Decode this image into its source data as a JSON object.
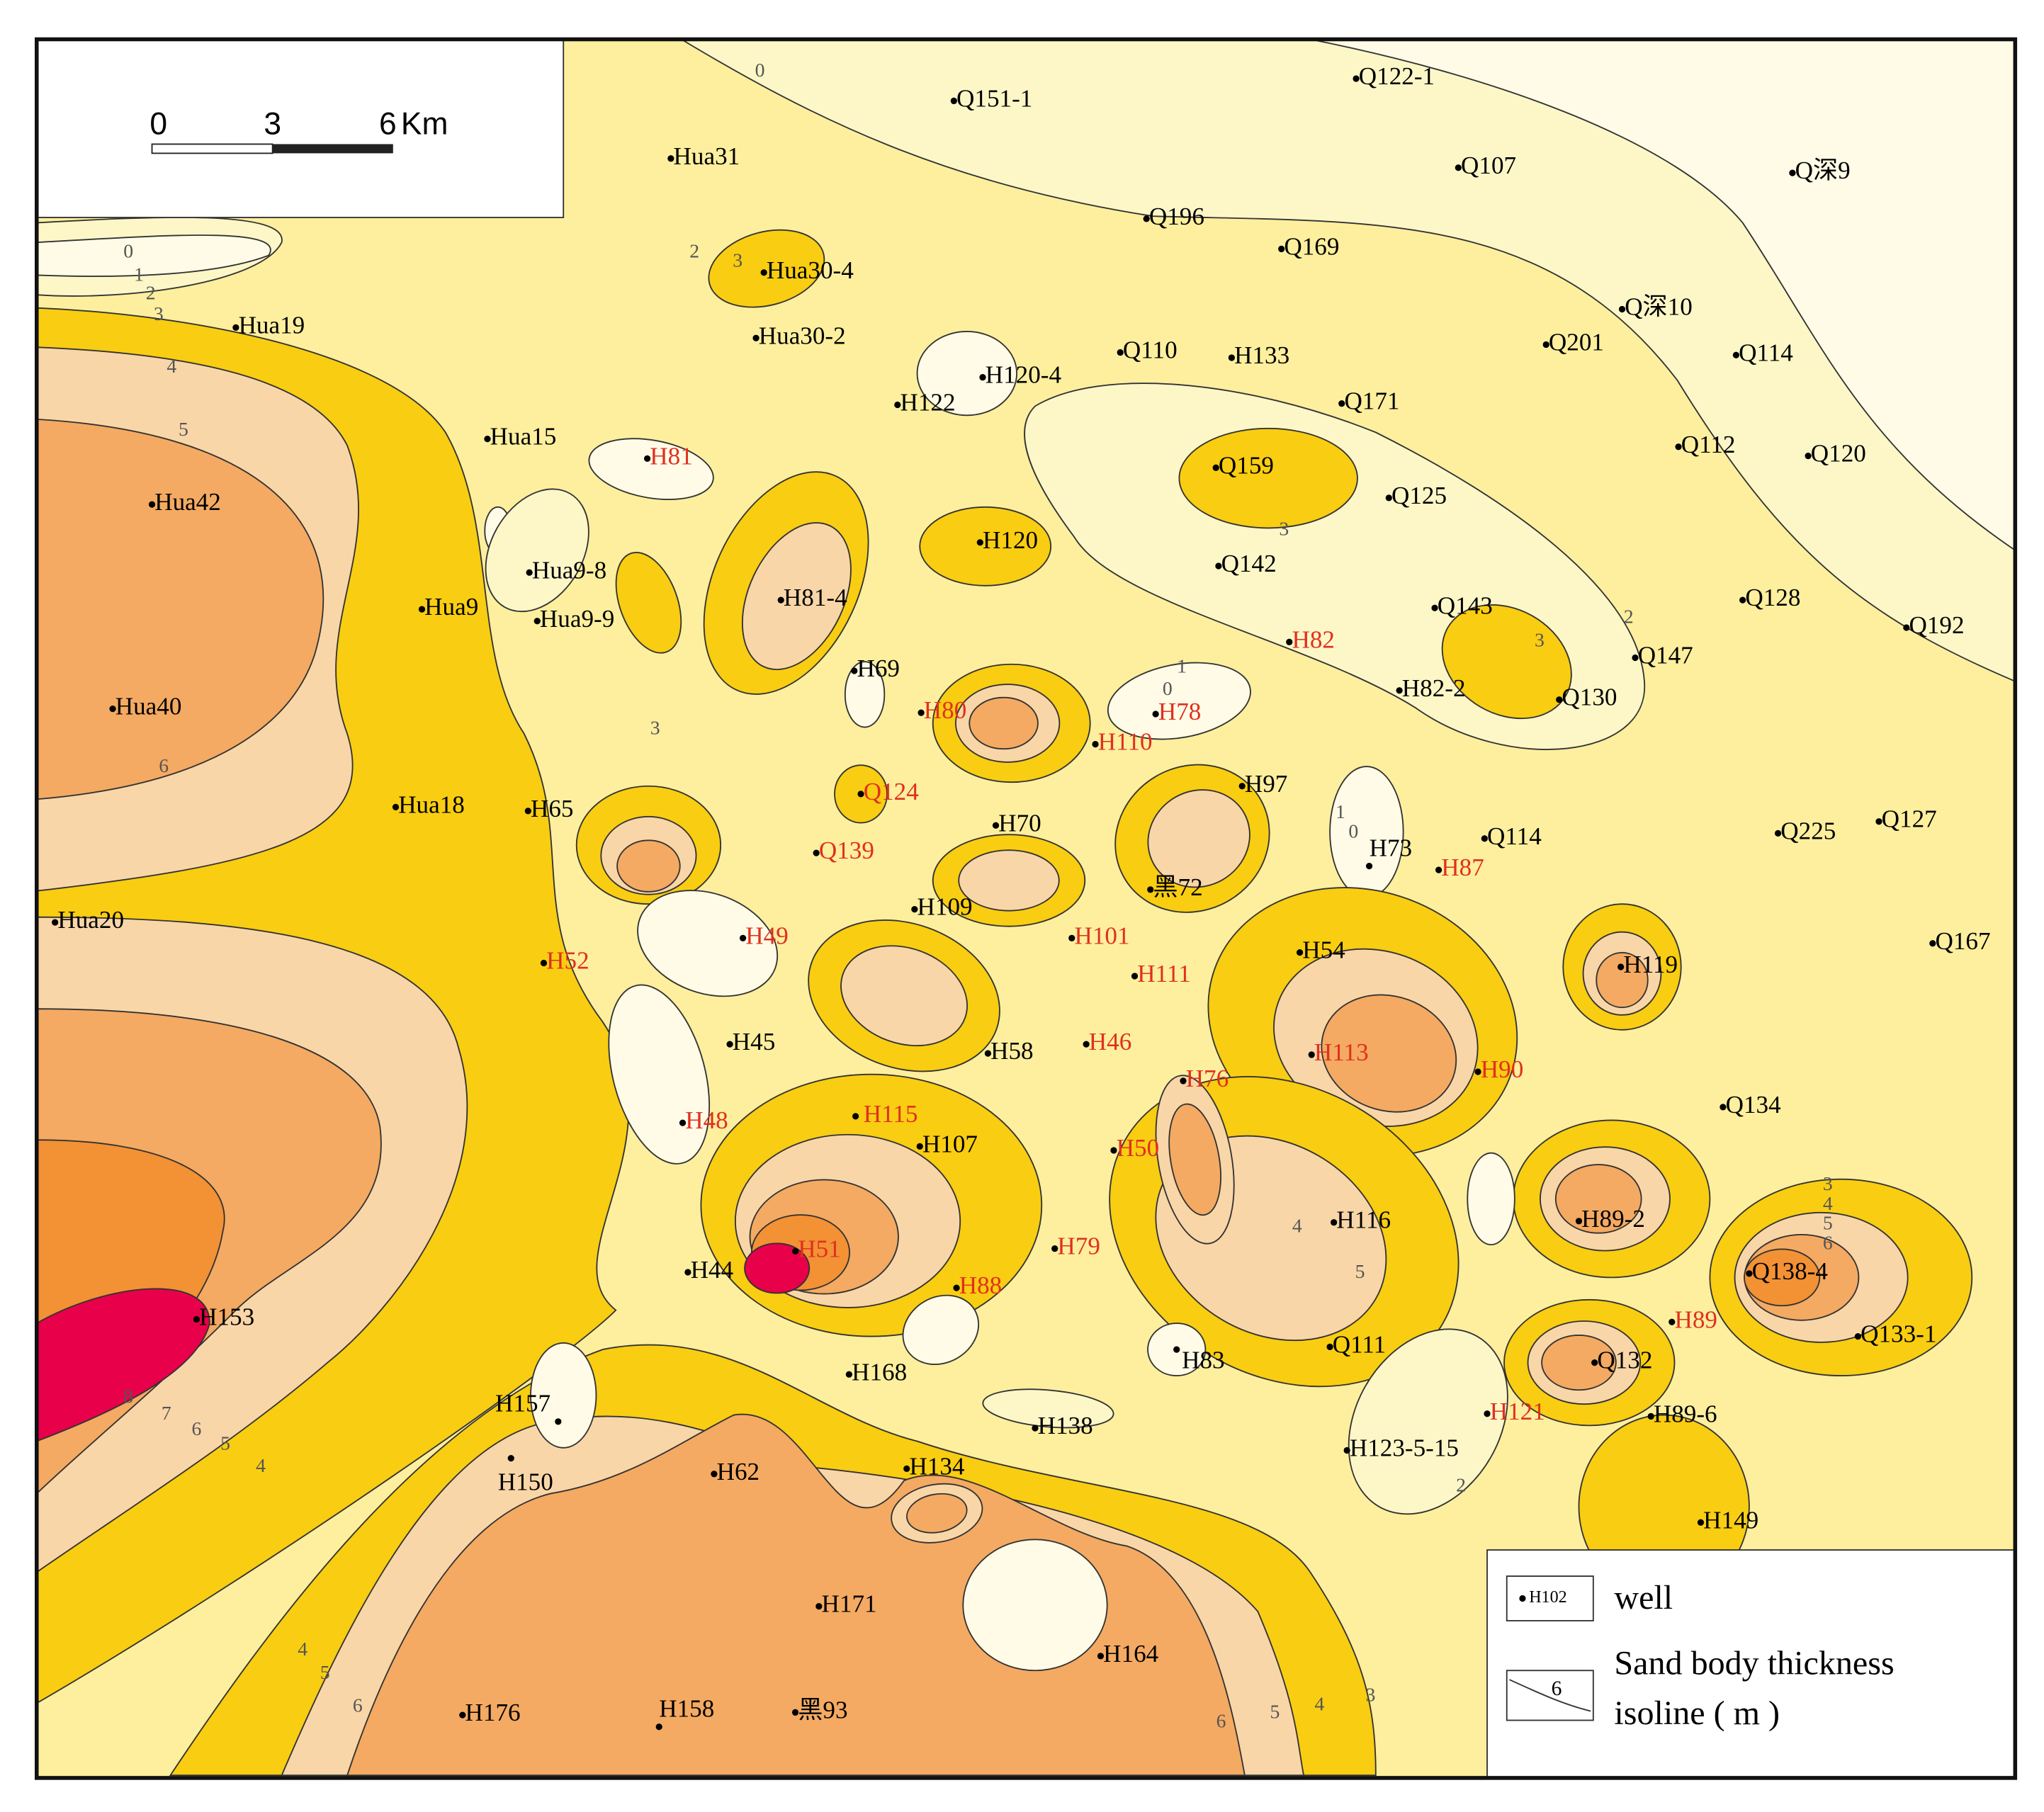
{
  "scale_bar": {
    "ticks": [
      0,
      3,
      6
    ],
    "unit": "Km"
  },
  "wells": [
    {
      "name": "Q151-1",
      "color": "#000"
    },
    {
      "name": "Q122-1",
      "color": "#000"
    },
    {
      "name": "Hua31",
      "color": "#000"
    },
    {
      "name": "Q107",
      "color": "#000"
    },
    {
      "name": "Q深9",
      "color": "#000"
    },
    {
      "name": "Q196",
      "color": "#000"
    },
    {
      "name": "Q169",
      "color": "#000"
    },
    {
      "name": "Hua30-4",
      "color": "#000"
    },
    {
      "name": "Hua19",
      "color": "#000"
    },
    {
      "name": "Q深10",
      "color": "#000"
    },
    {
      "name": "Hua30-2",
      "color": "#000"
    },
    {
      "name": "Q201",
      "color": "#000"
    },
    {
      "name": "Q110",
      "color": "#000"
    },
    {
      "name": "H133",
      "color": "#000"
    },
    {
      "name": "Q114",
      "color": "#000"
    },
    {
      "name": "H120-4",
      "color": "#000"
    },
    {
      "name": "H122",
      "color": "#000"
    },
    {
      "name": "Q171",
      "color": "#000"
    },
    {
      "name": "Hua15",
      "color": "#000"
    },
    {
      "name": "Q112",
      "color": "#000"
    },
    {
      "name": "Q120",
      "color": "#000"
    },
    {
      "name": "Hua42",
      "color": "#000"
    },
    {
      "name": "Q159",
      "color": "#000"
    },
    {
      "name": "Q125",
      "color": "#000"
    },
    {
      "name": "H120",
      "color": "#000"
    },
    {
      "name": "Q142",
      "color": "#000"
    },
    {
      "name": "Hua9-8",
      "color": "#000"
    },
    {
      "name": "Hua9",
      "color": "#000"
    },
    {
      "name": "Hua9-9",
      "color": "#000"
    },
    {
      "name": "H81-4",
      "color": "#000"
    },
    {
      "name": "Q143",
      "color": "#000"
    },
    {
      "name": "Q128",
      "color": "#000"
    },
    {
      "name": "Q192",
      "color": "#000"
    },
    {
      "name": "Q147",
      "color": "#000"
    },
    {
      "name": "H69",
      "color": "#000"
    },
    {
      "name": "Hua40",
      "color": "#000"
    },
    {
      "name": "H82-2",
      "color": "#000"
    },
    {
      "name": "Q130",
      "color": "#000"
    },
    {
      "name": "Hua18",
      "color": "#000"
    },
    {
      "name": "H65",
      "color": "#000"
    },
    {
      "name": "H97",
      "color": "#000"
    },
    {
      "name": "H70",
      "color": "#000"
    },
    {
      "name": "Q225",
      "color": "#000"
    },
    {
      "name": "Q127",
      "color": "#000"
    },
    {
      "name": "Q114",
      "color": "#000"
    },
    {
      "name": "H73",
      "color": "#000"
    },
    {
      "name": "黑72",
      "color": "#000"
    },
    {
      "name": "H109",
      "color": "#000"
    },
    {
      "name": "Hua20",
      "color": "#000"
    },
    {
      "name": "H54",
      "color": "#000"
    },
    {
      "name": "H119",
      "color": "#000"
    },
    {
      "name": "Q167",
      "color": "#000"
    },
    {
      "name": "H45",
      "color": "#000"
    },
    {
      "name": "H58",
      "color": "#000"
    },
    {
      "name": "Q134",
      "color": "#000"
    },
    {
      "name": "H107",
      "color": "#000"
    },
    {
      "name": "H116",
      "color": "#000"
    },
    {
      "name": "H89-2",
      "color": "#000"
    },
    {
      "name": "H44",
      "color": "#000"
    },
    {
      "name": "Q138-4",
      "color": "#000"
    },
    {
      "name": "H153",
      "color": "#000"
    },
    {
      "name": "Q133-1",
      "color": "#000"
    },
    {
      "name": "Q111",
      "color": "#000"
    },
    {
      "name": "H83",
      "color": "#000"
    },
    {
      "name": "H168",
      "color": "#000"
    },
    {
      "name": "Q132",
      "color": "#000"
    },
    {
      "name": "H157",
      "color": "#000"
    },
    {
      "name": "H138",
      "color": "#000"
    },
    {
      "name": "H89-6",
      "color": "#000"
    },
    {
      "name": "H123-5-15",
      "color": "#000"
    },
    {
      "name": "H150",
      "color": "#000"
    },
    {
      "name": "H62",
      "color": "#000"
    },
    {
      "name": "H134",
      "color": "#000"
    },
    {
      "name": "H149",
      "color": "#000"
    },
    {
      "name": "H171",
      "color": "#000"
    },
    {
      "name": "H164",
      "color": "#000"
    },
    {
      "name": "H176",
      "color": "#000"
    },
    {
      "name": "H158",
      "color": "#000"
    },
    {
      "name": "黑93",
      "color": "#000"
    },
    {
      "name": "H81",
      "color": "#e03020"
    },
    {
      "name": "H80",
      "color": "#e03020"
    },
    {
      "name": "H82",
      "color": "#e03020"
    },
    {
      "name": "H78",
      "color": "#e03020"
    },
    {
      "name": "H110",
      "color": "#e03020"
    },
    {
      "name": "Q124",
      "color": "#e03020"
    },
    {
      "name": "Q139",
      "color": "#e03020"
    },
    {
      "name": "H87",
      "color": "#e03020"
    },
    {
      "name": "H49",
      "color": "#e03020"
    },
    {
      "name": "H52",
      "color": "#e03020"
    },
    {
      "name": "H101",
      "color": "#e03020"
    },
    {
      "name": "H111",
      "color": "#e03020"
    },
    {
      "name": "H46",
      "color": "#e03020"
    },
    {
      "name": "H113",
      "color": "#e03020"
    },
    {
      "name": "H90",
      "color": "#e03020"
    },
    {
      "name": "H76",
      "color": "#e03020"
    },
    {
      "name": "H48",
      "color": "#e03020"
    },
    {
      "name": "H115",
      "color": "#e03020"
    },
    {
      "name": "H50",
      "color": "#e03020"
    },
    {
      "name": "H79",
      "color": "#e03020"
    },
    {
      "name": "H51",
      "color": "#e03020"
    },
    {
      "name": "H88",
      "color": "#e03020"
    },
    {
      "name": "H89",
      "color": "#e03020"
    },
    {
      "name": "H121",
      "color": "#e03020"
    }
  ],
  "isoline_labels": [
    0,
    0,
    1,
    2,
    3,
    4,
    5,
    6,
    8,
    7,
    6,
    5,
    4,
    2,
    3,
    3,
    2,
    3,
    3,
    4,
    5,
    3,
    4,
    5,
    6,
    4,
    5,
    6,
    6,
    5,
    4,
    3,
    2,
    1,
    0,
    1,
    0
  ],
  "legend": {
    "well_sample": "H102",
    "well": "well",
    "isoline_sample": 6,
    "isoline_line1": "Sand body thickness",
    "isoline_line2": "isoline ( m )"
  }
}
